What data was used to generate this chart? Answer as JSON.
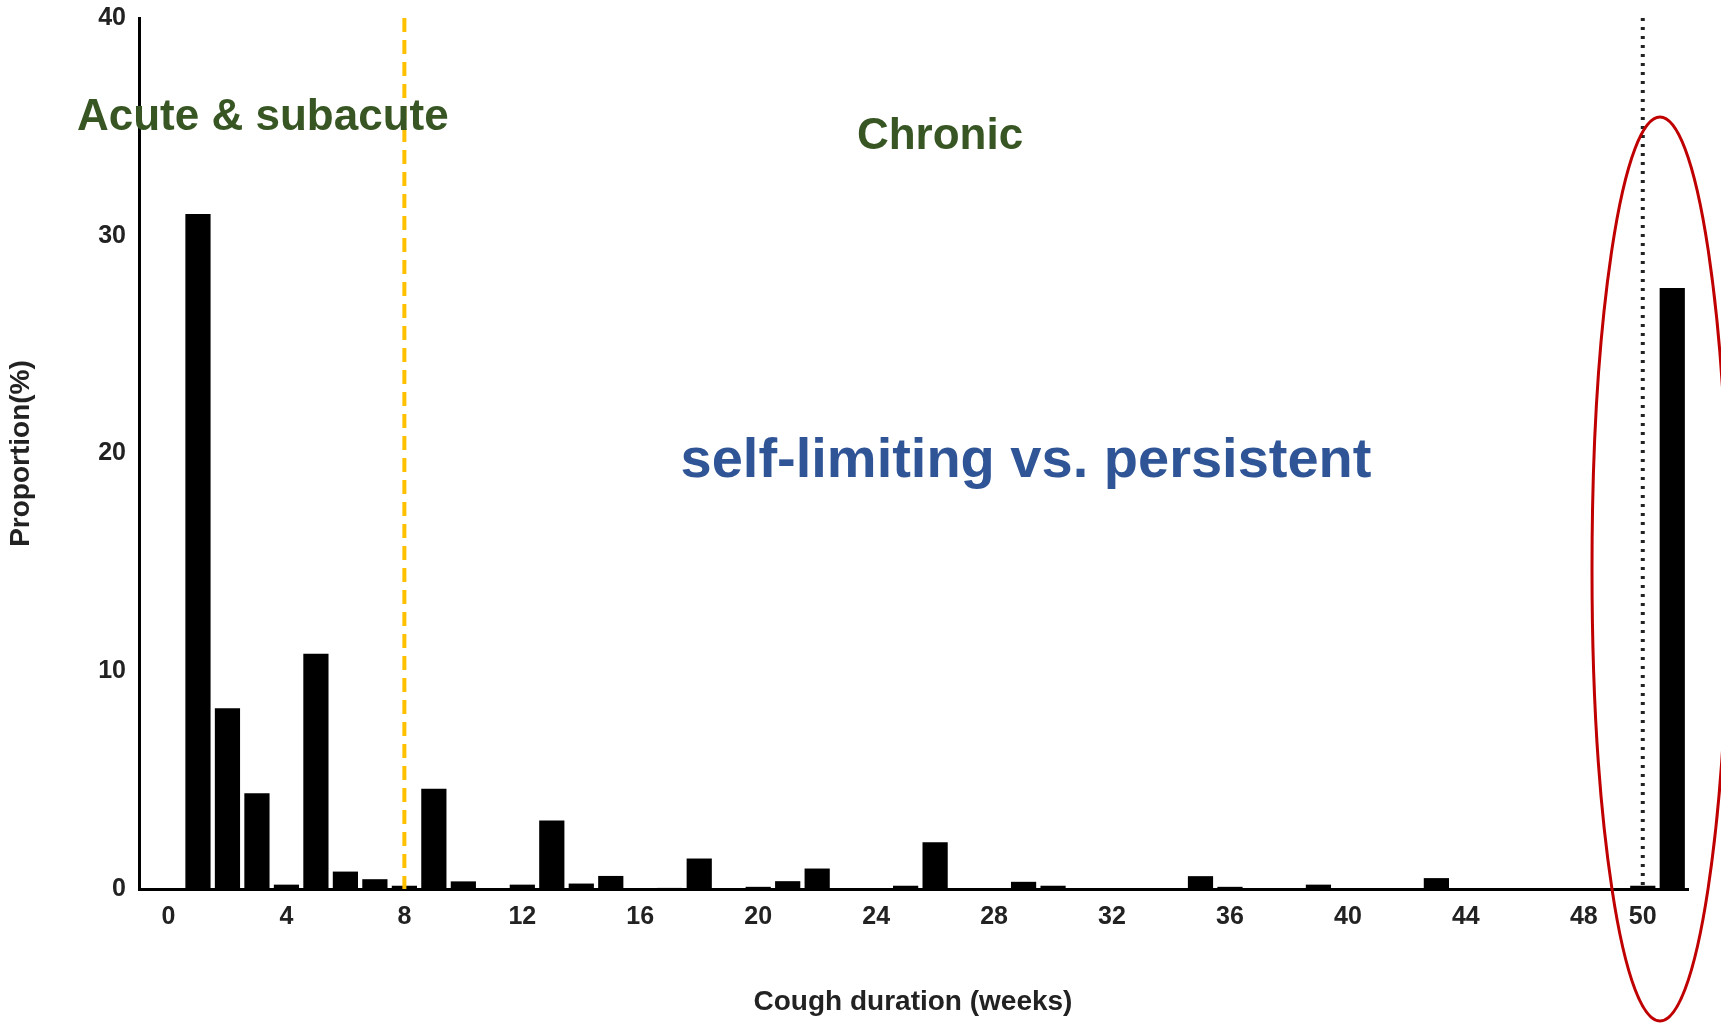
{
  "chart_data": {
    "type": "bar",
    "xlabel": "Cough duration (weeks)",
    "ylabel": "Proportion(%)",
    "x": [
      1,
      2,
      3,
      4,
      5,
      6,
      7,
      8,
      9,
      10,
      12,
      13,
      14,
      15,
      17,
      18,
      20,
      21,
      22,
      25,
      26,
      29,
      30,
      35,
      36,
      39,
      43,
      50,
      51
    ],
    "values": [
      31,
      8.3,
      4.4,
      0.2,
      10.8,
      0.8,
      0.45,
      0.15,
      4.6,
      0.35,
      0.2,
      3.15,
      0.25,
      0.6,
      0.05,
      1.4,
      0.1,
      0.36,
      0.94,
      0.15,
      2.15,
      0.33,
      0.15,
      0.59,
      0.1,
      0.2,
      0.5,
      0.15,
      27.6
    ],
    "color": "#000000",
    "xlim": [
      -1,
      51.5
    ],
    "xticks": [
      0,
      4,
      8,
      12,
      16,
      20,
      24,
      28,
      32,
      36,
      40,
      44,
      48,
      50
    ],
    "ylim": [
      0,
      40
    ],
    "yticks": [
      0,
      10,
      20,
      30,
      40
    ],
    "grid": false,
    "legend": false,
    "ref_lines": [
      {
        "axis": "x",
        "value": 8,
        "color": "#ffc000",
        "line_style": "dashed"
      },
      {
        "axis": "x",
        "value": 50,
        "color": "#222222",
        "line_style": "dotted"
      }
    ],
    "annotations": [
      "Acute & subacute",
      "Chronic",
      "self-limiting vs. persistent"
    ]
  }
}
